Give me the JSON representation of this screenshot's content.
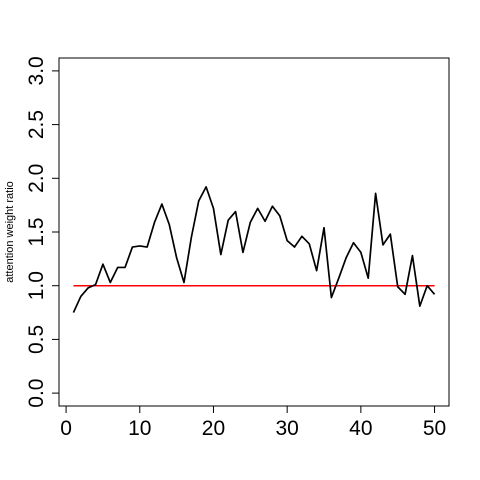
{
  "chart_data": {
    "type": "line",
    "ylabel": "attention weight ratio",
    "x": [
      1,
      2,
      3,
      4,
      5,
      6,
      7,
      8,
      9,
      10,
      11,
      12,
      13,
      14,
      15,
      16,
      17,
      18,
      19,
      20,
      21,
      22,
      23,
      24,
      25,
      26,
      27,
      28,
      29,
      30,
      31,
      32,
      33,
      34,
      35,
      36,
      37,
      38,
      39,
      40,
      41,
      42,
      43,
      44,
      45,
      46,
      47,
      48,
      49,
      50
    ],
    "series": [
      {
        "color": "#000000",
        "values": [
          0.75,
          0.9,
          0.98,
          1.01,
          1.2,
          1.03,
          1.17,
          1.17,
          1.36,
          1.37,
          1.36,
          1.59,
          1.76,
          1.57,
          1.26,
          1.03,
          1.45,
          1.79,
          1.92,
          1.72,
          1.29,
          1.61,
          1.69,
          1.31,
          1.59,
          1.72,
          1.6,
          1.74,
          1.65,
          1.42,
          1.36,
          1.46,
          1.39,
          1.14,
          1.54,
          0.89,
          1.07,
          1.26,
          1.4,
          1.31,
          1.07,
          1.86,
          1.38,
          1.48,
          0.99,
          0.92,
          1.28,
          0.81,
          1.0,
          0.92
        ]
      }
    ],
    "reference_line": {
      "y": 1,
      "color": "#ff0000"
    },
    "xlim": [
      -0.96,
      51.96
    ],
    "xticks": [
      0,
      10,
      20,
      30,
      40,
      50
    ],
    "ylim": [
      -0.12,
      3.12
    ],
    "yticks": [
      {
        "value": 0,
        "label": "0.0"
      },
      {
        "value": 0.5,
        "label": "0.5"
      },
      {
        "value": 1,
        "label": "1.0"
      },
      {
        "value": 1.5,
        "label": "1.5"
      },
      {
        "value": 2,
        "label": "2.0"
      },
      {
        "value": 2.5,
        "label": "2.5"
      },
      {
        "value": 3,
        "label": "3.0"
      }
    ]
  }
}
